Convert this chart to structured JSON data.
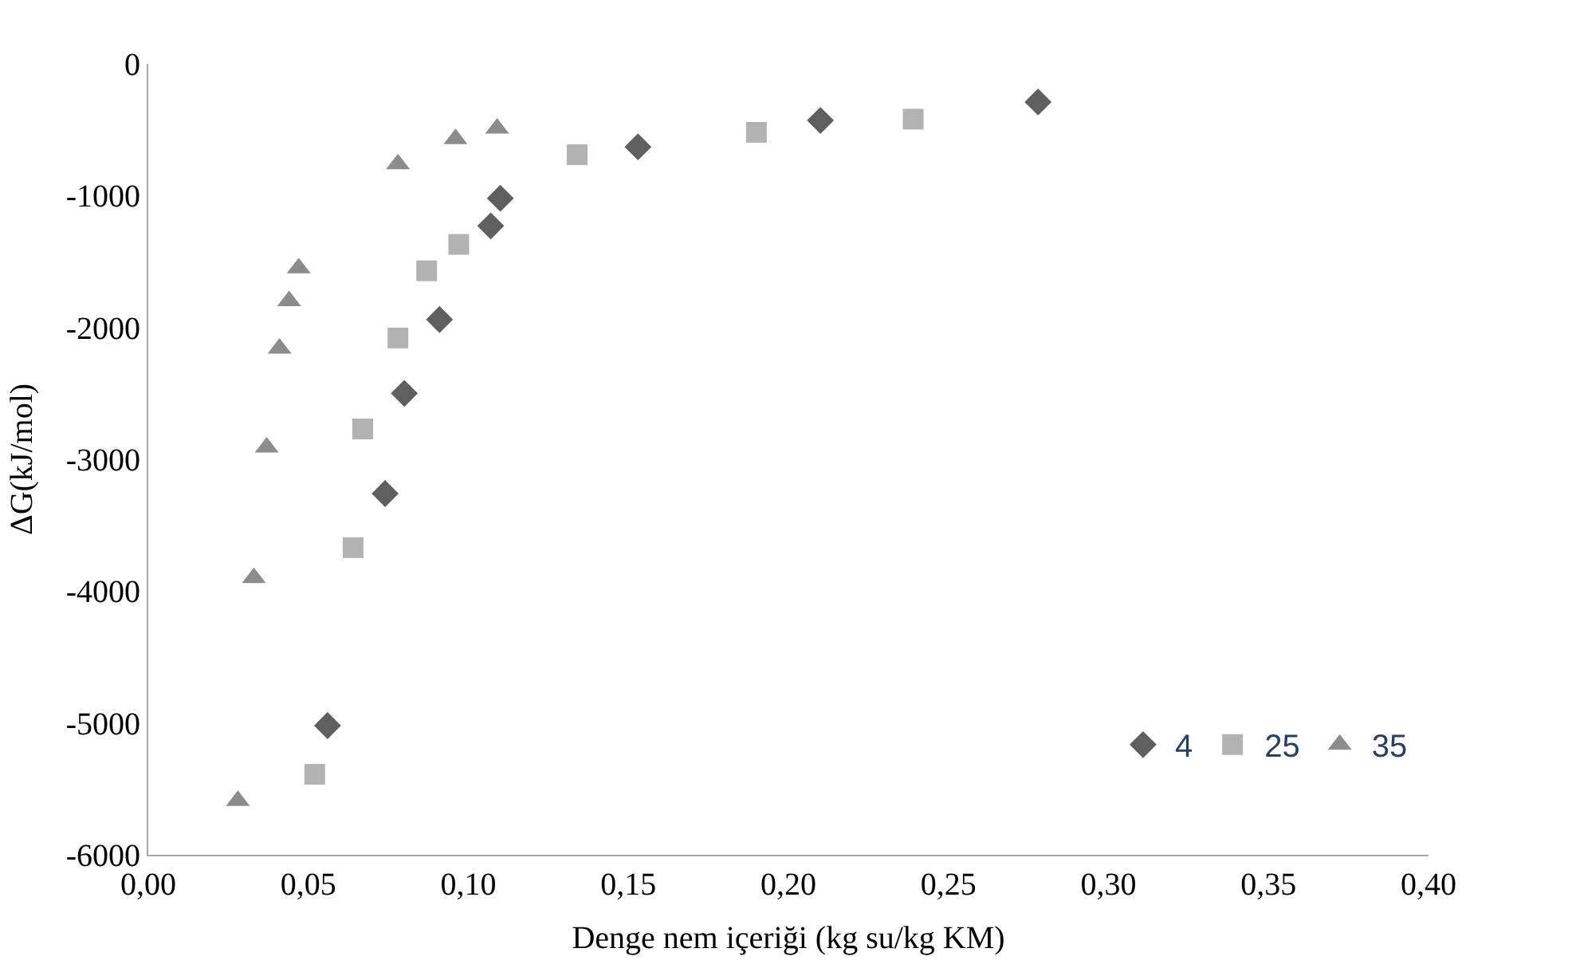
{
  "chart_data": {
    "type": "scatter",
    "xlabel": "Denge nem içeriği (kg su/kg KM)",
    "ylabel": "ΔG(kJ/mol)",
    "xlim": [
      0,
      0.4
    ],
    "xticks": [
      {
        "value": 0,
        "label": "0,00"
      },
      {
        "value": 0.05,
        "label": "0,05"
      },
      {
        "value": 0.1,
        "label": "0,10"
      },
      {
        "value": 0.15,
        "label": "0,15"
      },
      {
        "value": 0.2,
        "label": "0,20"
      },
      {
        "value": 0.25,
        "label": "0,25"
      },
      {
        "value": 0.3,
        "label": "0,30"
      },
      {
        "value": 0.35,
        "label": "0,35"
      },
      {
        "value": 0.4,
        "label": "0,40"
      }
    ],
    "ylim": [
      -6000,
      0
    ],
    "yticks": [
      -6000,
      -5000,
      -4000,
      -3000,
      -2000,
      -1000,
      0
    ],
    "grid": false,
    "legend": "bottom right",
    "series": [
      {
        "name": "4",
        "color": "#5f5f5f",
        "marker": "diamond",
        "x": [
          0.056,
          0.074,
          0.08,
          0.091,
          0.107,
          0.11,
          0.153,
          0.21,
          0.278
        ],
        "values": [
          -5020,
          -3260,
          -2500,
          -1940,
          -1230,
          -1020,
          -630,
          -430,
          -290
        ]
      },
      {
        "name": "25",
        "color": "#b2b2b2",
        "marker": "square",
        "x": [
          0.052,
          0.064,
          0.067,
          0.078,
          0.087,
          0.097,
          0.134,
          0.19,
          0.239
        ],
        "values": [
          -5390,
          -3670,
          -2770,
          -2080,
          -1570,
          -1370,
          -690,
          -520,
          -420
        ]
      },
      {
        "name": "35",
        "color": "#8c8c8c",
        "marker": "triangle",
        "x": [
          0.028,
          0.033,
          0.037,
          0.041,
          0.044,
          0.047,
          0.078,
          0.096,
          0.109
        ],
        "values": [
          -5590,
          -3900,
          -2910,
          -2160,
          -1800,
          -1550,
          -760,
          -570,
          -490
        ]
      }
    ]
  }
}
